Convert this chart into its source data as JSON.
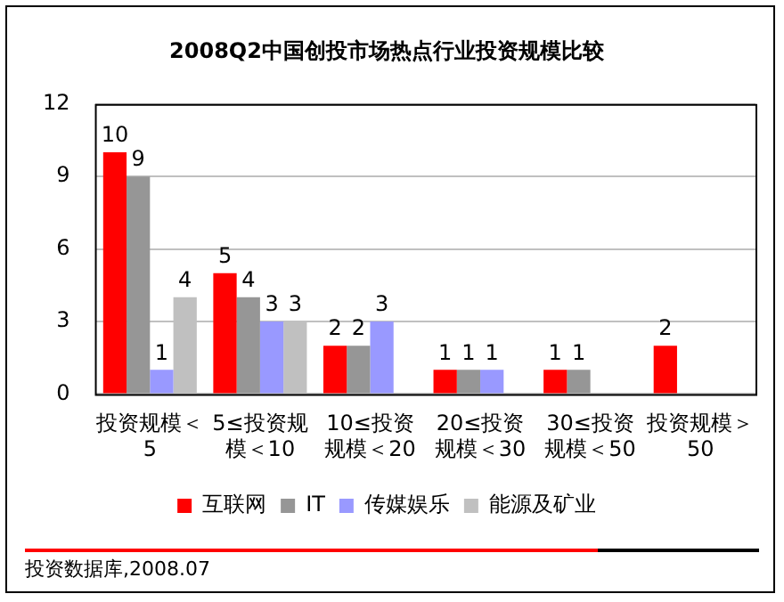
{
  "chart_data": {
    "type": "bar",
    "title": "2008Q2中国创投市场热点行业投资规模比较",
    "categories": [
      "投资规模＜5",
      "5≤投资规模＜10",
      "10≤投资规模＜20",
      "20≤投资规模＜30",
      "30≤投资规模＜50",
      "投资规模＞50"
    ],
    "series": [
      {
        "name": "互联网",
        "color": "#ff0000",
        "values": [
          10,
          5,
          2,
          1,
          1,
          2
        ]
      },
      {
        "name": "IT",
        "color": "#969696",
        "values": [
          9,
          4,
          2,
          1,
          1,
          null
        ]
      },
      {
        "name": "传媒娱乐",
        "color": "#9999ff",
        "values": [
          1,
          3,
          3,
          1,
          null,
          null
        ]
      },
      {
        "name": "能源及矿业",
        "color": "#c0c0c0",
        "values": [
          4,
          3,
          null,
          null,
          null,
          null
        ]
      }
    ],
    "ylim": [
      0,
      12
    ],
    "yticks": [
      0,
      3,
      6,
      9,
      12
    ],
    "grid": "y",
    "legend": "bottom",
    "data_labels": true,
    "annotations": [
      "投资数据库,2008.07"
    ]
  }
}
